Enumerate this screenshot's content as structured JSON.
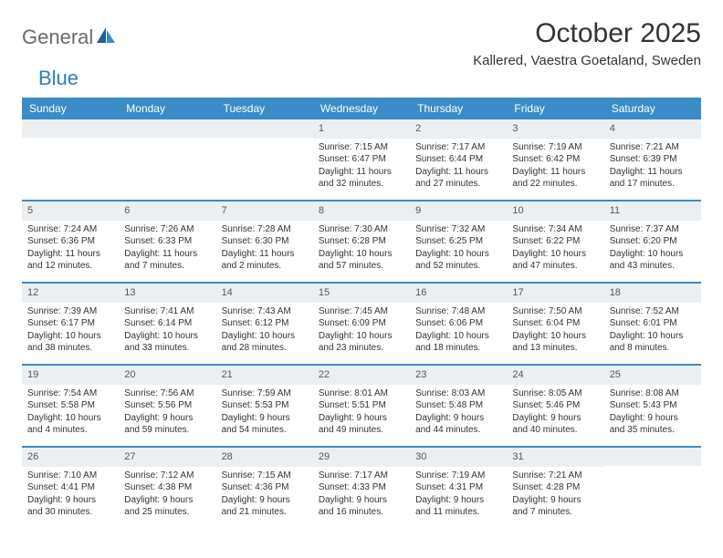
{
  "logo": {
    "general": "General",
    "blue": "Blue"
  },
  "title": "October 2025",
  "location": "Kallered, Vaestra Goetaland, Sweden",
  "colors": {
    "header_bg": "#3b8bc9",
    "header_text": "#ffffff",
    "daynum_bg": "#eceff1",
    "row_border": "#3b8bc9",
    "logo_gray": "#6b6b6b",
    "logo_blue": "#2d7fc1"
  },
  "day_headers": [
    "Sunday",
    "Monday",
    "Tuesday",
    "Wednesday",
    "Thursday",
    "Friday",
    "Saturday"
  ],
  "weeks": [
    [
      null,
      null,
      null,
      {
        "n": "1",
        "sr": "Sunrise: 7:15 AM",
        "ss": "Sunset: 6:47 PM",
        "d1": "Daylight: 11 hours",
        "d2": "and 32 minutes."
      },
      {
        "n": "2",
        "sr": "Sunrise: 7:17 AM",
        "ss": "Sunset: 6:44 PM",
        "d1": "Daylight: 11 hours",
        "d2": "and 27 minutes."
      },
      {
        "n": "3",
        "sr": "Sunrise: 7:19 AM",
        "ss": "Sunset: 6:42 PM",
        "d1": "Daylight: 11 hours",
        "d2": "and 22 minutes."
      },
      {
        "n": "4",
        "sr": "Sunrise: 7:21 AM",
        "ss": "Sunset: 6:39 PM",
        "d1": "Daylight: 11 hours",
        "d2": "and 17 minutes."
      }
    ],
    [
      {
        "n": "5",
        "sr": "Sunrise: 7:24 AM",
        "ss": "Sunset: 6:36 PM",
        "d1": "Daylight: 11 hours",
        "d2": "and 12 minutes."
      },
      {
        "n": "6",
        "sr": "Sunrise: 7:26 AM",
        "ss": "Sunset: 6:33 PM",
        "d1": "Daylight: 11 hours",
        "d2": "and 7 minutes."
      },
      {
        "n": "7",
        "sr": "Sunrise: 7:28 AM",
        "ss": "Sunset: 6:30 PM",
        "d1": "Daylight: 11 hours",
        "d2": "and 2 minutes."
      },
      {
        "n": "8",
        "sr": "Sunrise: 7:30 AM",
        "ss": "Sunset: 6:28 PM",
        "d1": "Daylight: 10 hours",
        "d2": "and 57 minutes."
      },
      {
        "n": "9",
        "sr": "Sunrise: 7:32 AM",
        "ss": "Sunset: 6:25 PM",
        "d1": "Daylight: 10 hours",
        "d2": "and 52 minutes."
      },
      {
        "n": "10",
        "sr": "Sunrise: 7:34 AM",
        "ss": "Sunset: 6:22 PM",
        "d1": "Daylight: 10 hours",
        "d2": "and 47 minutes."
      },
      {
        "n": "11",
        "sr": "Sunrise: 7:37 AM",
        "ss": "Sunset: 6:20 PM",
        "d1": "Daylight: 10 hours",
        "d2": "and 43 minutes."
      }
    ],
    [
      {
        "n": "12",
        "sr": "Sunrise: 7:39 AM",
        "ss": "Sunset: 6:17 PM",
        "d1": "Daylight: 10 hours",
        "d2": "and 38 minutes."
      },
      {
        "n": "13",
        "sr": "Sunrise: 7:41 AM",
        "ss": "Sunset: 6:14 PM",
        "d1": "Daylight: 10 hours",
        "d2": "and 33 minutes."
      },
      {
        "n": "14",
        "sr": "Sunrise: 7:43 AM",
        "ss": "Sunset: 6:12 PM",
        "d1": "Daylight: 10 hours",
        "d2": "and 28 minutes."
      },
      {
        "n": "15",
        "sr": "Sunrise: 7:45 AM",
        "ss": "Sunset: 6:09 PM",
        "d1": "Daylight: 10 hours",
        "d2": "and 23 minutes."
      },
      {
        "n": "16",
        "sr": "Sunrise: 7:48 AM",
        "ss": "Sunset: 6:06 PM",
        "d1": "Daylight: 10 hours",
        "d2": "and 18 minutes."
      },
      {
        "n": "17",
        "sr": "Sunrise: 7:50 AM",
        "ss": "Sunset: 6:04 PM",
        "d1": "Daylight: 10 hours",
        "d2": "and 13 minutes."
      },
      {
        "n": "18",
        "sr": "Sunrise: 7:52 AM",
        "ss": "Sunset: 6:01 PM",
        "d1": "Daylight: 10 hours",
        "d2": "and 8 minutes."
      }
    ],
    [
      {
        "n": "19",
        "sr": "Sunrise: 7:54 AM",
        "ss": "Sunset: 5:58 PM",
        "d1": "Daylight: 10 hours",
        "d2": "and 4 minutes."
      },
      {
        "n": "20",
        "sr": "Sunrise: 7:56 AM",
        "ss": "Sunset: 5:56 PM",
        "d1": "Daylight: 9 hours",
        "d2": "and 59 minutes."
      },
      {
        "n": "21",
        "sr": "Sunrise: 7:59 AM",
        "ss": "Sunset: 5:53 PM",
        "d1": "Daylight: 9 hours",
        "d2": "and 54 minutes."
      },
      {
        "n": "22",
        "sr": "Sunrise: 8:01 AM",
        "ss": "Sunset: 5:51 PM",
        "d1": "Daylight: 9 hours",
        "d2": "and 49 minutes."
      },
      {
        "n": "23",
        "sr": "Sunrise: 8:03 AM",
        "ss": "Sunset: 5:48 PM",
        "d1": "Daylight: 9 hours",
        "d2": "and 44 minutes."
      },
      {
        "n": "24",
        "sr": "Sunrise: 8:05 AM",
        "ss": "Sunset: 5:46 PM",
        "d1": "Daylight: 9 hours",
        "d2": "and 40 minutes."
      },
      {
        "n": "25",
        "sr": "Sunrise: 8:08 AM",
        "ss": "Sunset: 5:43 PM",
        "d1": "Daylight: 9 hours",
        "d2": "and 35 minutes."
      }
    ],
    [
      {
        "n": "26",
        "sr": "Sunrise: 7:10 AM",
        "ss": "Sunset: 4:41 PM",
        "d1": "Daylight: 9 hours",
        "d2": "and 30 minutes."
      },
      {
        "n": "27",
        "sr": "Sunrise: 7:12 AM",
        "ss": "Sunset: 4:38 PM",
        "d1": "Daylight: 9 hours",
        "d2": "and 25 minutes."
      },
      {
        "n": "28",
        "sr": "Sunrise: 7:15 AM",
        "ss": "Sunset: 4:36 PM",
        "d1": "Daylight: 9 hours",
        "d2": "and 21 minutes."
      },
      {
        "n": "29",
        "sr": "Sunrise: 7:17 AM",
        "ss": "Sunset: 4:33 PM",
        "d1": "Daylight: 9 hours",
        "d2": "and 16 minutes."
      },
      {
        "n": "30",
        "sr": "Sunrise: 7:19 AM",
        "ss": "Sunset: 4:31 PM",
        "d1": "Daylight: 9 hours",
        "d2": "and 11 minutes."
      },
      {
        "n": "31",
        "sr": "Sunrise: 7:21 AM",
        "ss": "Sunset: 4:28 PM",
        "d1": "Daylight: 9 hours",
        "d2": "and 7 minutes."
      },
      null
    ]
  ]
}
